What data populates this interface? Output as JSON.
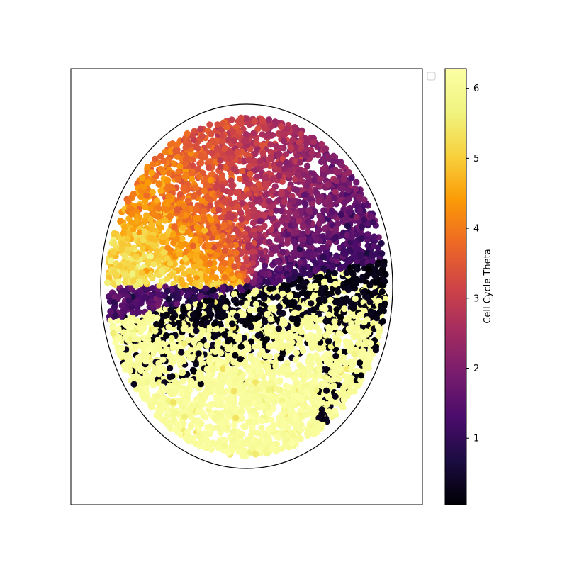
{
  "chart_data": {
    "type": "scatter",
    "title": "",
    "xlabel": "",
    "ylabel": "",
    "colormap": "inferno",
    "colorbar": {
      "label": "Cell Cycle Theta",
      "range": [
        0.05,
        6.28
      ],
      "ticks": [
        {
          "value": 1,
          "label": "1"
        },
        {
          "value": 2,
          "label": "2"
        },
        {
          "value": 3,
          "label": "3"
        },
        {
          "value": 4,
          "label": "4"
        },
        {
          "value": 5,
          "label": "5"
        },
        {
          "value": 6,
          "label": "6"
        }
      ]
    },
    "axes_ticks_visible": false,
    "grid": false,
    "legend": {
      "placement": "outside-top-right",
      "entries": []
    },
    "xlim": [
      -1.2,
      1.2
    ],
    "ylim": [
      -1.2,
      1.2
    ],
    "boundary_ellipse": {
      "center": [
        0,
        0
      ],
      "rx": 1.0,
      "ry": 1.0,
      "color": "#000000"
    },
    "point_cloud": {
      "count": 5200,
      "shape": "disk",
      "radius": 0.97,
      "mid_boundary_slope": 0.18,
      "mid_boundary_offset": -0.02,
      "notes_regions": [
        {
          "region": "top",
          "theta_range": [
            3.2,
            4.2
          ]
        },
        {
          "region": "upper-left",
          "theta_range": [
            4.2,
            5.3
          ]
        },
        {
          "region": "right-middle",
          "theta_range": [
            0.8,
            2.6
          ]
        },
        {
          "region": "band",
          "theta_range": [
            0.05,
            0.4
          ]
        },
        {
          "region": "bottom",
          "theta_range": [
            5.9,
            6.28
          ]
        }
      ]
    },
    "marker_color_example_hex": "#fcffa4"
  }
}
